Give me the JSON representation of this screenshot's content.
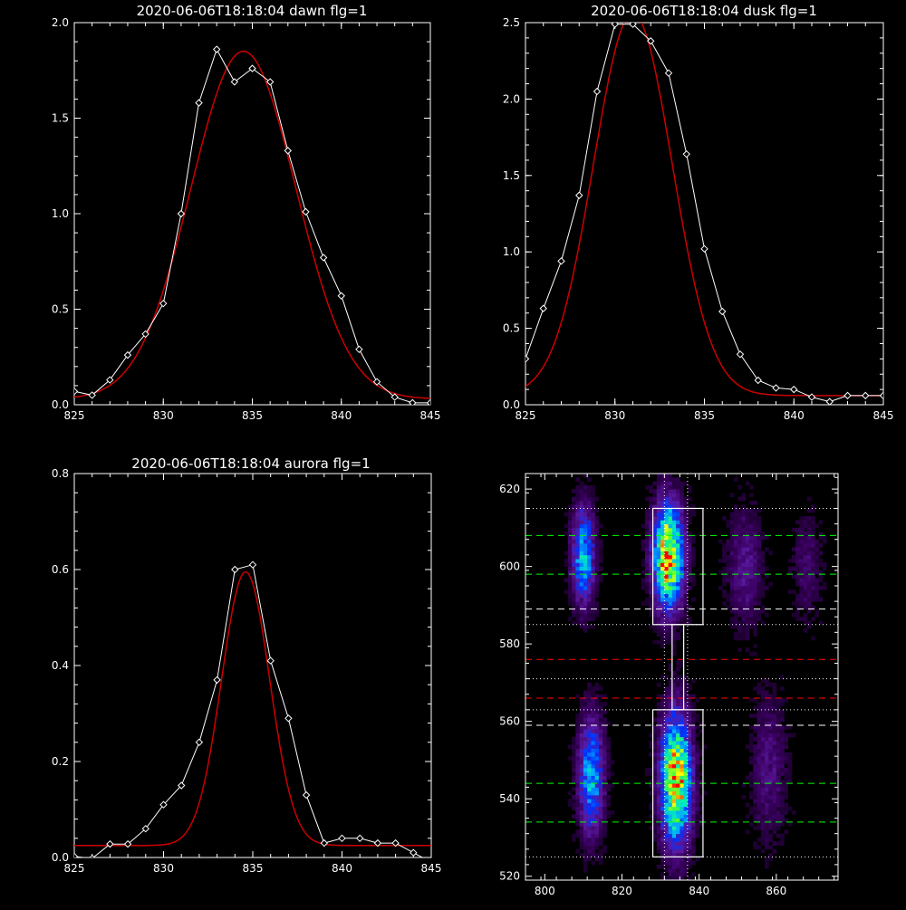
{
  "chart_data": [
    {
      "type": "line",
      "title": "2020-06-06T18:18:04 dawn flg=1",
      "xlim": [
        825,
        845
      ],
      "ylim": [
        0.0,
        2.0
      ],
      "xticks": [
        "825",
        "830",
        "835",
        "840",
        "845"
      ],
      "yticks": [
        "0.0",
        "0.5",
        "1.0",
        "1.5",
        "2.0"
      ],
      "grid": false,
      "series": [
        {
          "color": "#ffffff",
          "markers": "diamond",
          "x": [
            825,
            826,
            827,
            828,
            829,
            830,
            831,
            832,
            833,
            834,
            835,
            836,
            837,
            838,
            839,
            840,
            841,
            842,
            843,
            844,
            845
          ],
          "y": [
            0.07,
            0.05,
            0.13,
            0.26,
            0.37,
            0.53,
            1.0,
            1.58,
            1.86,
            1.69,
            1.76,
            1.69,
            1.33,
            1.01,
            0.77,
            0.57,
            0.29,
            0.12,
            0.04,
            0.01,
            0.01
          ]
        },
        {
          "color": "#cc0000",
          "markers": "none",
          "model": "gauss",
          "amp": 1.82,
          "center": 834.5,
          "sigma": 2.95,
          "offset": 0.03
        }
      ]
    },
    {
      "type": "line",
      "title": "2020-06-06T18:18:04 dusk flg=1",
      "xlim": [
        825,
        845
      ],
      "ylim": [
        0.0,
        2.5
      ],
      "xticks": [
        "825",
        "830",
        "835",
        "840",
        "845"
      ],
      "yticks": [
        "0.0",
        "0.5",
        "1.0",
        "1.5",
        "2.0",
        "2.5"
      ],
      "grid": false,
      "series": [
        {
          "color": "#ffffff",
          "markers": "diamond",
          "x": [
            825,
            826,
            827,
            828,
            829,
            830,
            831,
            832,
            833,
            834,
            835,
            836,
            837,
            838,
            839,
            840,
            841,
            842,
            843,
            844,
            845
          ],
          "y": [
            0.3,
            0.63,
            0.94,
            1.37,
            2.05,
            2.49,
            2.49,
            2.38,
            2.17,
            1.64,
            1.02,
            0.61,
            0.33,
            0.16,
            0.11,
            0.1,
            0.05,
            0.02,
            0.06,
            0.06,
            0.06
          ]
        },
        {
          "color": "#cc0000",
          "markers": "none",
          "model": "gauss",
          "amp": 2.5,
          "center": 831.0,
          "sigma": 2.2,
          "offset": 0.06
        }
      ]
    },
    {
      "type": "line",
      "title": "2020-06-06T18:18:04 aurora flg=1",
      "xlim": [
        825,
        845
      ],
      "ylim": [
        0.0,
        0.8
      ],
      "xticks": [
        "825",
        "830",
        "835",
        "840",
        "845"
      ],
      "yticks": [
        "0.0",
        "0.2",
        "0.4",
        "0.6",
        "0.8"
      ],
      "grid": false,
      "series": [
        {
          "color": "#ffffff",
          "markers": "diamond",
          "x": [
            825,
            826,
            827,
            828,
            829,
            830,
            831,
            832,
            833,
            834,
            835,
            836,
            837,
            838,
            839,
            840,
            841,
            842,
            843,
            844,
            845
          ],
          "y": [
            0.002,
            -0.002,
            0.028,
            0.028,
            0.06,
            0.11,
            0.15,
            0.24,
            0.37,
            0.6,
            0.61,
            0.41,
            0.29,
            0.13,
            0.03,
            0.04,
            0.04,
            0.03,
            0.03,
            0.01,
            -0.01
          ]
        },
        {
          "color": "#cc0000",
          "markers": "none",
          "model": "gauss",
          "amp": 0.57,
          "center": 834.6,
          "sigma": 1.35,
          "offset": 0.025
        }
      ]
    },
    {
      "type": "heatmap",
      "title": "",
      "xlim": [
        795,
        876
      ],
      "ylim": [
        519,
        624
      ],
      "xticks": [
        "800",
        "820",
        "840",
        "860"
      ],
      "yticks": [
        "520",
        "540",
        "560",
        "580",
        "600",
        "620"
      ],
      "grid": false,
      "colormap": [
        "#000000",
        "#3a0060",
        "#5a1aa0",
        "#0030ff",
        "#00a8ff",
        "#00e8c0",
        "#40ff40",
        "#ffff00",
        "#ff0000"
      ],
      "sources": [
        {
          "x": 810,
          "y": 603,
          "sx": 2.0,
          "sy": 8.5,
          "amp": 0.5
        },
        {
          "x": 812,
          "y": 546,
          "sx": 2.2,
          "sy": 10.0,
          "amp": 0.5
        },
        {
          "x": 832,
          "y": 603,
          "sx": 2.6,
          "sy": 9.0,
          "amp": 0.95
        },
        {
          "x": 834,
          "y": 545,
          "sx": 2.6,
          "sy": 11.0,
          "amp": 0.95
        },
        {
          "x": 852,
          "y": 600,
          "sx": 3.0,
          "sy": 10.0,
          "amp": 0.18
        },
        {
          "x": 858,
          "y": 548,
          "sx": 3.0,
          "sy": 12.0,
          "amp": 0.16
        },
        {
          "x": 868,
          "y": 600,
          "sx": 2.5,
          "sy": 9.0,
          "amp": 0.12
        }
      ],
      "boxes": [
        {
          "x0": 828,
          "x1": 841,
          "y0": 585,
          "y1": 615
        },
        {
          "x0": 828,
          "x1": 841,
          "y0": 525,
          "y1": 563
        },
        {
          "x0": 833,
          "x1": 836,
          "y0": 563,
          "y1": 585
        }
      ],
      "hlines": [
        {
          "y": 615,
          "color": "#ffffff",
          "style": "dotted"
        },
        {
          "y": 608,
          "color": "#00ff00",
          "style": "dashed"
        },
        {
          "y": 598,
          "color": "#00ff00",
          "style": "dashed"
        },
        {
          "y": 589,
          "color": "#ffffff",
          "style": "dashed"
        },
        {
          "y": 585,
          "color": "#ffffff",
          "style": "dotted"
        },
        {
          "y": 576,
          "color": "#ff0000",
          "style": "dashed"
        },
        {
          "y": 571,
          "color": "#ffffff",
          "style": "dotted"
        },
        {
          "y": 566,
          "color": "#ff0000",
          "style": "dashed"
        },
        {
          "y": 563,
          "color": "#ffffff",
          "style": "dotted"
        },
        {
          "y": 559,
          "color": "#ffffff",
          "style": "dashed"
        },
        {
          "y": 544,
          "color": "#00ff00",
          "style": "dashed"
        },
        {
          "y": 534,
          "color": "#00ff00",
          "style": "dashed"
        },
        {
          "y": 525,
          "color": "#ffffff",
          "style": "dotted"
        }
      ],
      "vlines": [
        {
          "x": 831,
          "color": "#ffffff",
          "style": "dotted"
        },
        {
          "x": 837,
          "color": "#ffffff",
          "style": "dotted"
        }
      ]
    }
  ]
}
